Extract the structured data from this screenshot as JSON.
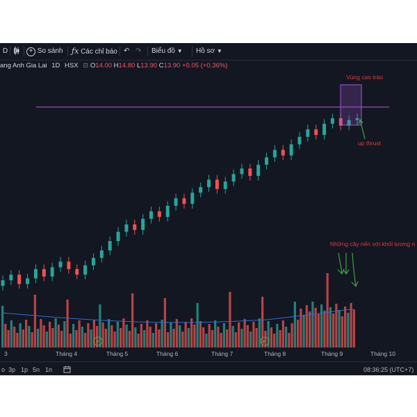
{
  "toolbar": {
    "symbol_frag": "D",
    "compare_label": "So sánh",
    "indicators_label": "Các chỉ báo",
    "chart_label": "Biểu đồ",
    "template_label": "Hồ sơ"
  },
  "legend": {
    "name": "ang Anh Gia Lai",
    "interval": "1D",
    "exchange": "HSX",
    "open_label": "O",
    "open": "14.00",
    "high_label": "H",
    "high": "14.80",
    "low_label": "L",
    "low": "13.90",
    "close_label": "C",
    "close": "13.90",
    "change": "+0.05 (+0.36%)"
  },
  "annotations": {
    "climax": "Vùng cao trào",
    "upthrust": "up thrust",
    "volume_note": "Những cây nến với khối lượng n"
  },
  "bottombar": {
    "ranges": [
      "3p",
      "1p",
      "5n",
      "1n"
    ],
    "time": "08:36:25 (UTC+7)"
  },
  "colors": {
    "up": "#26a69a",
    "down": "#ef5350",
    "resistance": "#c158dc",
    "ma": "#2a6fdb",
    "annotation_red": "#e53935",
    "annotation_green": "#43a047"
  },
  "chart_data": {
    "type": "candlestick",
    "x_labels": [
      "3",
      "Tháng 4",
      "Tháng 5",
      "Tháng 6",
      "Tháng 7",
      "Tháng 8",
      "Tháng 9",
      "Tháng 10"
    ],
    "ohlc_close": [
      5.2,
      5.5,
      5.0,
      5.3,
      5.8,
      5.4,
      5.9,
      6.2,
      5.8,
      5.5,
      6.0,
      6.4,
      6.8,
      7.3,
      7.8,
      8.2,
      7.9,
      8.5,
      8.9,
      8.6,
      9.2,
      9.6,
      9.3,
      9.9,
      10.2,
      10.6,
      10.1,
      10.5,
      10.9,
      11.2,
      10.8,
      11.4,
      11.8,
      12.2,
      11.9,
      12.5,
      12.9,
      13.3,
      13.0,
      13.6,
      13.9,
      13.5,
      13.8,
      13.9
    ],
    "resistance_level": 13.95,
    "events": [
      "F",
      "F"
    ]
  }
}
